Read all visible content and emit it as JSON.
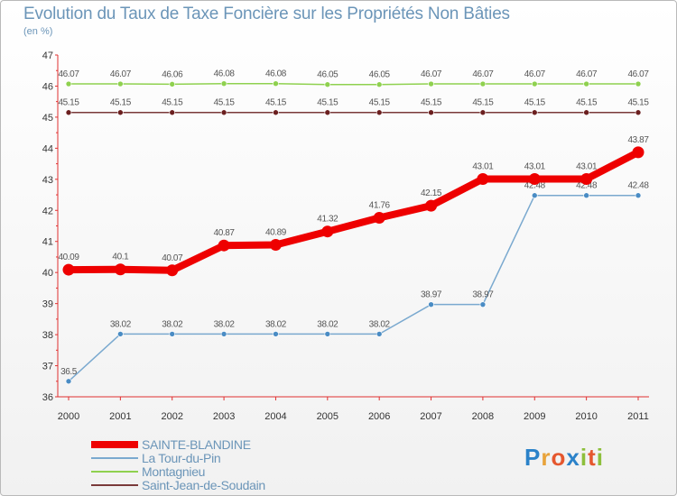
{
  "title": "Evolution du Taux de Taxe Foncière sur les Propriétés Non Bâties",
  "subtitle": "(en %)",
  "logo": {
    "text": "Proxiti",
    "letters": [
      "P",
      "r",
      "o",
      "x",
      "i",
      "t",
      "i"
    ],
    "colors": [
      "#2b82c9",
      "#e8a33a",
      "#e5572e",
      "#2b82c9",
      "#8dbf3c",
      "#e5572e",
      "#8dbf3c"
    ]
  },
  "chart_data": {
    "type": "line",
    "title": "Evolution du Taux de Taxe Foncière sur les Propriétés Non Bâties",
    "ylabel": "(en %)",
    "xlabel": "",
    "categories": [
      "2000",
      "2001",
      "2002",
      "2003",
      "2004",
      "2005",
      "2006",
      "2007",
      "2008",
      "2009",
      "2010",
      "2011"
    ],
    "ylim": [
      36,
      47
    ],
    "yticks": [
      "36",
      "37",
      "38",
      "39",
      "40",
      "41",
      "42",
      "43",
      "44",
      "45",
      "46",
      "47"
    ],
    "grid": false,
    "legend": "bottom-left",
    "series": [
      {
        "name": "Montagnieu",
        "color": "#8fd14f",
        "marker": "#8fd14f",
        "values": [
          46.07,
          46.07,
          46.06,
          46.08,
          46.08,
          46.05,
          46.05,
          46.07,
          46.07,
          46.07,
          46.07,
          46.07
        ],
        "labels": [
          "46.07",
          "46.07",
          "46.06",
          "46.08",
          "46.08",
          "46.05",
          "46.05",
          "46.07",
          "46.07",
          "46.07",
          "46.07",
          "46.07"
        ]
      },
      {
        "name": "Saint-Jean-de-Soudain",
        "color": "#7a3a3a",
        "marker": "#6b1f1f",
        "values": [
          45.15,
          45.15,
          45.15,
          45.15,
          45.15,
          45.15,
          45.15,
          45.15,
          45.15,
          45.15,
          45.15,
          45.15
        ],
        "labels": [
          "45.15",
          "45.15",
          "45.15",
          "45.15",
          "45.15",
          "45.15",
          "45.15",
          "45.15",
          "45.15",
          "45.15",
          "45.15",
          "45.15"
        ]
      },
      {
        "name": "La Tour-du-Pin",
        "color": "#7aa9cf",
        "marker": "#4a8cc4",
        "values": [
          36.5,
          38.02,
          38.02,
          38.02,
          38.02,
          38.02,
          38.02,
          38.97,
          38.97,
          42.48,
          42.48,
          42.48
        ],
        "labels": [
          "36.5",
          "38.02",
          "38.02",
          "38.02",
          "38.02",
          "38.02",
          "38.02",
          "38.97",
          "38.97",
          "42.48",
          "42.48",
          "42.48"
        ]
      },
      {
        "name": "SAINTE-BLANDINE",
        "color": "#ee0000",
        "marker": "#ee0000",
        "values": [
          40.09,
          40.1,
          40.07,
          40.87,
          40.89,
          41.32,
          41.76,
          42.15,
          43.01,
          43.01,
          43.01,
          43.87
        ],
        "labels": [
          "40.09",
          "40.1",
          "40.07",
          "40.87",
          "40.89",
          "41.32",
          "41.76",
          "42.15",
          "43.01",
          "43.01",
          "43.01",
          "43.87"
        ]
      }
    ],
    "legend_entries": [
      "SAINTE-BLANDINE",
      "La Tour-du-Pin",
      "Montagnieu",
      "Saint-Jean-de-Soudain"
    ]
  }
}
